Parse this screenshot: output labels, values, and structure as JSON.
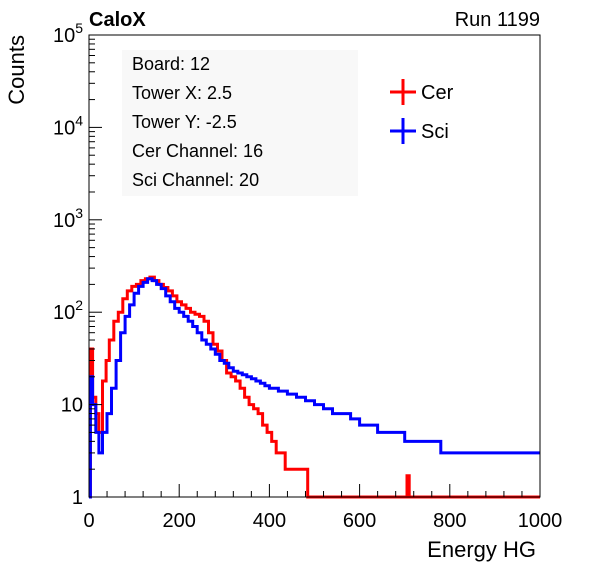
{
  "header": {
    "left": "CaloX",
    "right": "Run 1199"
  },
  "info": {
    "lines": [
      "Board: 12",
      "Tower X: 2.5",
      "Tower Y: -2.5",
      "Cer Channel: 16",
      "Sci Channel: 20"
    ]
  },
  "chart_data": {
    "type": "histogram",
    "xlabel": "Energy HG",
    "ylabel": "Counts",
    "xlim": [
      0,
      1000
    ],
    "ylim": [
      1,
      100000
    ],
    "yscale": "log",
    "x_ticks": [
      "0",
      "200",
      "400",
      "600",
      "800",
      "1000"
    ],
    "y_ticks": [
      {
        "base": "1",
        "exp": ""
      },
      {
        "base": "10",
        "exp": ""
      },
      {
        "base": "10",
        "exp": "2"
      },
      {
        "base": "10",
        "exp": "3"
      },
      {
        "base": "10",
        "exp": "4"
      },
      {
        "base": "10",
        "exp": "5"
      }
    ],
    "legend": {
      "position": "top-right"
    },
    "series": [
      {
        "name": "Cer",
        "color": "#ff0000",
        "points": [
          [
            0,
            0
          ],
          [
            3,
            40
          ],
          [
            8,
            12
          ],
          [
            15,
            8
          ],
          [
            22,
            5
          ],
          [
            30,
            18
          ],
          [
            38,
            30
          ],
          [
            45,
            50
          ],
          [
            55,
            80
          ],
          [
            65,
            100
          ],
          [
            75,
            140
          ],
          [
            85,
            170
          ],
          [
            95,
            190
          ],
          [
            105,
            200
          ],
          [
            115,
            220
          ],
          [
            125,
            230
          ],
          [
            135,
            240
          ],
          [
            145,
            220
          ],
          [
            155,
            200
          ],
          [
            165,
            185
          ],
          [
            175,
            170
          ],
          [
            185,
            150
          ],
          [
            195,
            130
          ],
          [
            205,
            120
          ],
          [
            215,
            110
          ],
          [
            225,
            100
          ],
          [
            235,
            95
          ],
          [
            245,
            90
          ],
          [
            255,
            80
          ],
          [
            265,
            60
          ],
          [
            275,
            45
          ],
          [
            285,
            38
          ],
          [
            295,
            30
          ],
          [
            305,
            22
          ],
          [
            315,
            20
          ],
          [
            325,
            18
          ],
          [
            335,
            15
          ],
          [
            345,
            12
          ],
          [
            355,
            10
          ],
          [
            365,
            9
          ],
          [
            375,
            8
          ],
          [
            385,
            6
          ],
          [
            395,
            5
          ],
          [
            405,
            4
          ],
          [
            415,
            3
          ],
          [
            425,
            3
          ],
          [
            435,
            2
          ],
          [
            445,
            2
          ],
          [
            455,
            2
          ],
          [
            465,
            2
          ],
          [
            475,
            2
          ],
          [
            485,
            1
          ],
          [
            500,
            1
          ],
          [
            700,
            1
          ],
          [
            705,
            1.7
          ],
          [
            710,
            1
          ],
          [
            1000,
            1
          ]
        ]
      },
      {
        "name": "Sci",
        "color": "#0000ff",
        "points": [
          [
            0,
            0
          ],
          [
            3,
            20
          ],
          [
            8,
            10
          ],
          [
            15,
            5
          ],
          [
            22,
            3
          ],
          [
            30,
            5
          ],
          [
            40,
            8
          ],
          [
            50,
            15
          ],
          [
            60,
            30
          ],
          [
            70,
            60
          ],
          [
            80,
            90
          ],
          [
            90,
            120
          ],
          [
            100,
            160
          ],
          [
            110,
            190
          ],
          [
            120,
            210
          ],
          [
            130,
            230
          ],
          [
            140,
            220
          ],
          [
            150,
            200
          ],
          [
            160,
            180
          ],
          [
            170,
            150
          ],
          [
            180,
            130
          ],
          [
            190,
            110
          ],
          [
            200,
            100
          ],
          [
            210,
            90
          ],
          [
            220,
            80
          ],
          [
            230,
            70
          ],
          [
            240,
            60
          ],
          [
            250,
            50
          ],
          [
            260,
            45
          ],
          [
            270,
            40
          ],
          [
            280,
            35
          ],
          [
            290,
            30
          ],
          [
            300,
            28
          ],
          [
            310,
            25
          ],
          [
            320,
            23
          ],
          [
            330,
            22
          ],
          [
            340,
            21
          ],
          [
            350,
            20
          ],
          [
            360,
            19
          ],
          [
            370,
            18
          ],
          [
            380,
            17
          ],
          [
            390,
            16
          ],
          [
            400,
            15
          ],
          [
            420,
            14
          ],
          [
            440,
            13
          ],
          [
            460,
            12
          ],
          [
            480,
            11
          ],
          [
            500,
            10
          ],
          [
            520,
            9
          ],
          [
            540,
            8
          ],
          [
            560,
            8
          ],
          [
            580,
            7
          ],
          [
            600,
            6
          ],
          [
            620,
            6
          ],
          [
            640,
            5
          ],
          [
            660,
            5
          ],
          [
            680,
            5
          ],
          [
            700,
            4
          ],
          [
            720,
            4
          ],
          [
            740,
            4
          ],
          [
            760,
            4
          ],
          [
            780,
            3
          ],
          [
            800,
            3
          ],
          [
            820,
            3
          ],
          [
            840,
            3
          ],
          [
            860,
            3
          ],
          [
            880,
            3
          ],
          [
            900,
            3
          ],
          [
            920,
            3
          ],
          [
            940,
            3
          ],
          [
            960,
            3
          ],
          [
            980,
            3
          ],
          [
            1000,
            3
          ]
        ]
      }
    ]
  }
}
